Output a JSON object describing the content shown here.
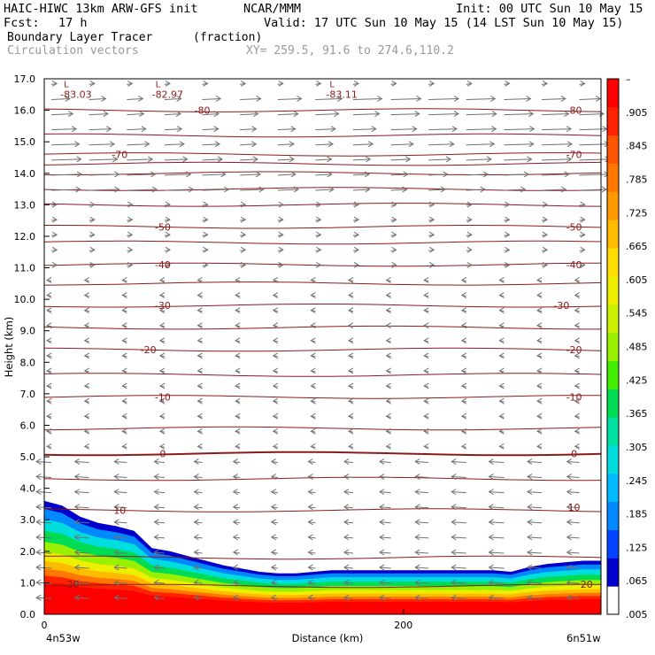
{
  "header": {
    "model": "HAIC-HIWC 13km ARW-GFS init",
    "center": "NCAR/MMM",
    "init": "Init: 00 UTC Sun 10 May 15",
    "fcst_label": "Fcst:",
    "fcst_value": "17 h",
    "valid": "Valid: 17 UTC Sun 10 May 15 (14 LST Sun 10 May 15)",
    "field": "Boundary Layer Tracer",
    "field_units": "(fraction)",
    "vectors": "Circulation vectors",
    "xy": "XY= 259.5, 91.6 to 274.6,110.2"
  },
  "colors": {
    "contour": "#8b1a1a",
    "vector": "#707070",
    "tracer_scale": [
      "#ffffff",
      "#0000cc",
      "#0044ff",
      "#0088ff",
      "#00bbff",
      "#00dddd",
      "#00e0a0",
      "#00dd55",
      "#44ee00",
      "#99f000",
      "#ccf000",
      "#eeee00",
      "#ffdd00",
      "#ffbb00",
      "#ff9900",
      "#ff7700",
      "#ff5500",
      "#ff2200",
      "#ff0000"
    ]
  },
  "chart_data": {
    "type": "cross-section",
    "xlabel": "Distance (km)",
    "ylabel": "Height (km)",
    "x_ticks": [
      "0",
      "200"
    ],
    "x_tick_values": [
      0,
      200
    ],
    "xlim": [
      0,
      310
    ],
    "ylim": [
      0,
      17
    ],
    "y_ticks": [
      "0.0",
      "1.0",
      "2.0",
      "3.0",
      "4.0",
      "5.0",
      "6.0",
      "7.0",
      "8.0",
      "9.0",
      "10.0",
      "11.0",
      "12.0",
      "13.0",
      "14.0",
      "15.0",
      "16.0",
      "17.0"
    ],
    "endpoints": {
      "left": "4n53w",
      "right": "6n51w"
    },
    "colorbar": {
      "labels": [
        "–",
        ".905",
        ".845",
        ".785",
        ".725",
        ".665",
        ".605",
        ".545",
        ".485",
        ".425",
        ".365",
        ".305",
        ".245",
        ".185",
        ".125",
        ".065",
        ".005"
      ]
    },
    "temperature_contour_labels": [
      {
        "text": "-80",
        "x": 88,
        "y": 16.0
      },
      {
        "text": "-80",
        "x": 295,
        "y": 16.0
      },
      {
        "text": "-70",
        "x": 42,
        "y": 14.6
      },
      {
        "text": "-70",
        "x": 295,
        "y": 14.6
      },
      {
        "text": "-50",
        "x": 66,
        "y": 12.3
      },
      {
        "text": "-50",
        "x": 295,
        "y": 12.3
      },
      {
        "text": "-40",
        "x": 66,
        "y": 11.1
      },
      {
        "text": "-40",
        "x": 295,
        "y": 11.1
      },
      {
        "text": "-30",
        "x": 66,
        "y": 9.8
      },
      {
        "text": "-30",
        "x": 288,
        "y": 9.8
      },
      {
        "text": "-20",
        "x": 58,
        "y": 8.4
      },
      {
        "text": "-20",
        "x": 295,
        "y": 8.4
      },
      {
        "text": "-10",
        "x": 66,
        "y": 6.9
      },
      {
        "text": "-10",
        "x": 295,
        "y": 6.9
      },
      {
        "text": "0",
        "x": 66,
        "y": 5.1
      },
      {
        "text": "0",
        "x": 295,
        "y": 5.1
      },
      {
        "text": "10",
        "x": 42,
        "y": 3.3
      },
      {
        "text": "10",
        "x": 295,
        "y": 3.4
      },
      {
        "text": "20",
        "x": 16,
        "y": 0.95
      },
      {
        "text": "20",
        "x": 302,
        "y": 0.95
      }
    ],
    "minima": [
      {
        "mark": "L",
        "text": "-83.03",
        "x": 4,
        "y": 16.7
      },
      {
        "mark": "L",
        "text": "-82.97",
        "x": 55,
        "y": 16.7
      },
      {
        "mark": "L",
        "text": "-83.11",
        "x": 152,
        "y": 16.7
      }
    ],
    "isotherm_heights": [
      0.9,
      1.8,
      3.3,
      4.3,
      5.1,
      5.9,
      6.9,
      7.6,
      8.4,
      9.1,
      9.8,
      10.5,
      11.1,
      11.8,
      12.3,
      13.0,
      13.5,
      14.0,
      14.3,
      14.6,
      15.2,
      16.0
    ],
    "tracer_top": {
      "x": [
        0,
        10,
        20,
        30,
        40,
        50,
        60,
        70,
        80,
        90,
        100,
        110,
        120,
        130,
        140,
        150,
        160,
        170,
        180,
        190,
        200,
        210,
        220,
        230,
        240,
        250,
        260,
        270,
        280,
        290,
        300,
        310
      ],
      "height": [
        3.6,
        3.45,
        3.1,
        2.9,
        2.8,
        2.65,
        2.1,
        2.0,
        1.85,
        1.7,
        1.55,
        1.45,
        1.35,
        1.3,
        1.3,
        1.35,
        1.4,
        1.4,
        1.4,
        1.4,
        1.4,
        1.4,
        1.4,
        1.4,
        1.4,
        1.4,
        1.35,
        1.5,
        1.6,
        1.65,
        1.7,
        1.7
      ]
    },
    "wind_upper_jet_layers_km": [
      13.0,
      16.6
    ],
    "wind_low_level_easterlies_km": [
      0.0,
      5.0
    ]
  }
}
